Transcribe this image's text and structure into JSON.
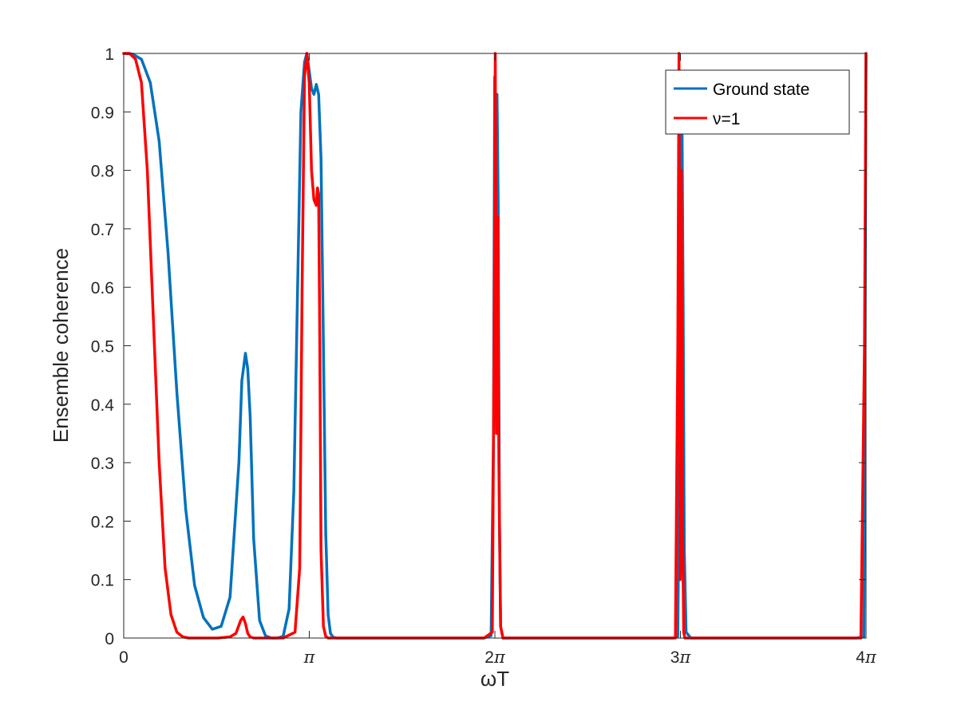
{
  "chart_data": {
    "type": "line",
    "xlabel": "ωT",
    "ylabel": "Ensemble coherence",
    "xlim": [
      0,
      12.566
    ],
    "ylim": [
      0,
      1
    ],
    "x_ticks": [
      {
        "value": 0,
        "label": "0"
      },
      {
        "value": 3.1416,
        "label": "π"
      },
      {
        "value": 6.2832,
        "label": "2π"
      },
      {
        "value": 9.4248,
        "label": "3π"
      },
      {
        "value": 12.566,
        "label": "4π"
      }
    ],
    "y_ticks": [
      {
        "value": 0,
        "label": "0"
      },
      {
        "value": 0.1,
        "label": "0.1"
      },
      {
        "value": 0.2,
        "label": "0.2"
      },
      {
        "value": 0.3,
        "label": "0.3"
      },
      {
        "value": 0.4,
        "label": "0.4"
      },
      {
        "value": 0.5,
        "label": "0.5"
      },
      {
        "value": 0.6,
        "label": "0.6"
      },
      {
        "value": 0.7,
        "label": "0.7"
      },
      {
        "value": 0.8,
        "label": "0.8"
      },
      {
        "value": 0.9,
        "label": "0.9"
      },
      {
        "value": 1,
        "label": "1"
      }
    ],
    "grid": false,
    "legend_position": "top-right",
    "series": [
      {
        "name": "Ground state",
        "color": "#0072BD",
        "x": [
          0,
          0.15,
          0.3,
          0.45,
          0.6,
          0.75,
          0.9,
          1.05,
          1.2,
          1.35,
          1.5,
          1.65,
          1.8,
          1.95,
          2.0,
          2.06,
          2.1,
          2.14,
          2.2,
          2.3,
          2.4,
          2.5,
          2.6,
          2.7,
          2.8,
          2.88,
          2.94,
          3.0,
          3.06,
          3.1,
          3.14,
          3.18,
          3.22,
          3.26,
          3.3,
          3.34,
          3.38,
          3.42,
          3.46,
          3.5,
          3.54,
          3.6,
          3.7,
          4.5,
          5.5,
          6.1,
          6.22,
          6.26,
          6.28,
          6.3,
          6.32,
          6.34,
          6.36,
          6.38,
          6.42,
          6.5,
          7.5,
          8.5,
          9.3,
          9.38,
          9.41,
          9.43,
          9.45,
          9.47,
          9.49,
          9.52,
          9.6,
          10.5,
          11.5,
          12.4,
          12.53,
          12.55,
          12.566
        ],
        "y": [
          1,
          0.999,
          0.99,
          0.95,
          0.85,
          0.66,
          0.42,
          0.22,
          0.09,
          0.035,
          0.015,
          0.02,
          0.07,
          0.3,
          0.44,
          0.487,
          0.46,
          0.38,
          0.17,
          0.03,
          0.004,
          0.0,
          0.0,
          0.003,
          0.05,
          0.25,
          0.58,
          0.9,
          0.985,
          1.0,
          0.97,
          0.94,
          0.93,
          0.947,
          0.93,
          0.82,
          0.5,
          0.18,
          0.04,
          0.008,
          0.002,
          0.0,
          0.0,
          0.0,
          0.0,
          0.0,
          0.004,
          0.35,
          0.96,
          0.82,
          0.93,
          0.74,
          0.2,
          0.02,
          0.0,
          0.0,
          0.0,
          0.0,
          0.0,
          0.003,
          0.35,
          0.97,
          0.9,
          0.57,
          0.15,
          0.01,
          0.0,
          0.0,
          0.0,
          0.0,
          0.002,
          0.5,
          1.0
        ]
      },
      {
        "name": "ν=1",
        "color": "#FF0000",
        "x": [
          0,
          0.1,
          0.2,
          0.3,
          0.4,
          0.5,
          0.6,
          0.7,
          0.8,
          0.9,
          1.0,
          1.1,
          1.2,
          1.4,
          1.6,
          1.8,
          1.9,
          1.98,
          2.02,
          2.06,
          2.1,
          2.14,
          2.2,
          2.4,
          2.7,
          2.9,
          2.98,
          3.02,
          3.06,
          3.1,
          3.14,
          3.18,
          3.22,
          3.26,
          3.28,
          3.3,
          3.32,
          3.34,
          3.38,
          3.42,
          3.46,
          3.5,
          3.6,
          4.5,
          5.5,
          6.1,
          6.24,
          6.27,
          6.29,
          6.31,
          6.33,
          6.35,
          6.38,
          6.42,
          6.5,
          7.5,
          8.5,
          9.34,
          9.38,
          9.4,
          9.42,
          9.44,
          9.46,
          9.48,
          9.5,
          9.55,
          10.5,
          11.5,
          12.48,
          12.54,
          12.566
        ],
        "y": [
          1,
          1,
          0.99,
          0.95,
          0.8,
          0.55,
          0.3,
          0.12,
          0.04,
          0.01,
          0.002,
          0.0,
          0.0,
          0.0,
          0.0,
          0.002,
          0.008,
          0.03,
          0.036,
          0.025,
          0.008,
          0.002,
          0.0,
          0.0,
          0.0,
          0.01,
          0.12,
          0.6,
          0.96,
          1.0,
          0.95,
          0.8,
          0.75,
          0.74,
          0.77,
          0.76,
          0.5,
          0.15,
          0.02,
          0.003,
          0.0,
          0.0,
          0.0,
          0.0,
          0.0,
          0.0,
          0.01,
          0.5,
          1.0,
          0.35,
          0.72,
          0.3,
          0.02,
          0.0,
          0.0,
          0.0,
          0.0,
          0.0,
          0.5,
          1.0,
          0.1,
          0.8,
          0.2,
          0.01,
          0.0,
          0.0,
          0.0,
          0.0,
          0.0,
          0.5,
          1.0
        ]
      }
    ]
  }
}
